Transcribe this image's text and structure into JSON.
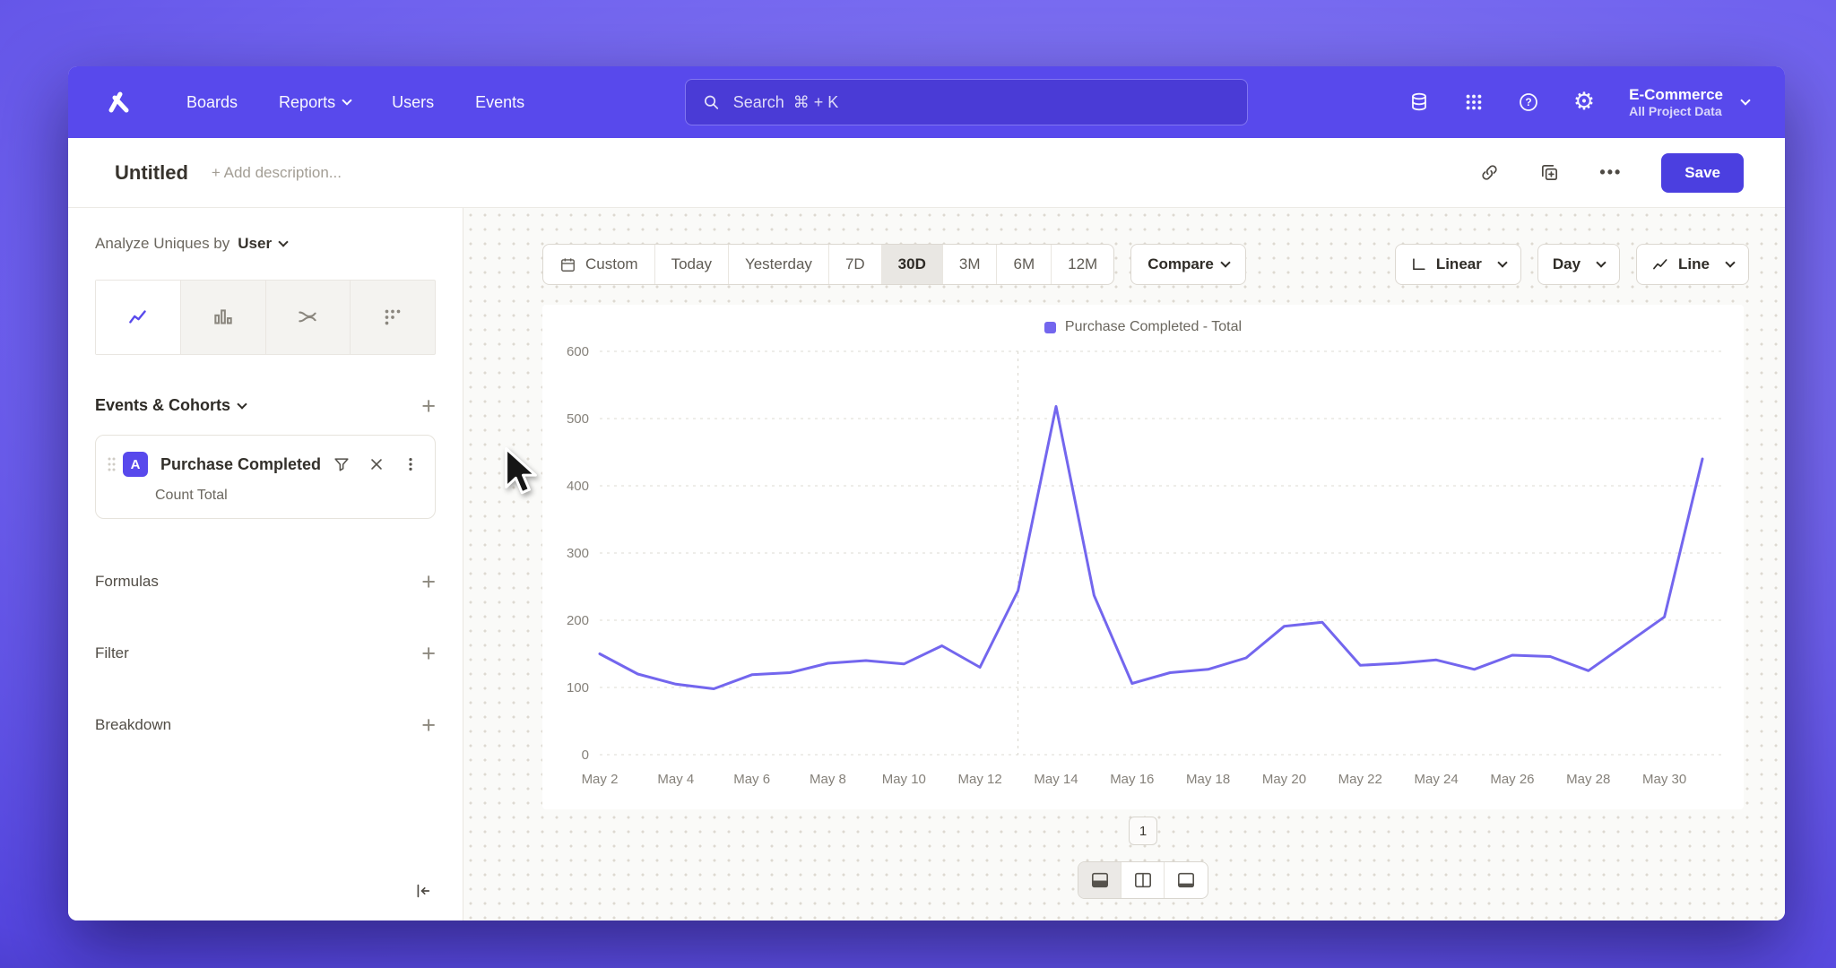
{
  "colors": {
    "brand": "#5849ec",
    "line": "#7366ee",
    "save": "#4b3fe0"
  },
  "icons": {
    "ellipsis": "•••",
    "plus": "+",
    "gear": "⚙"
  },
  "nav": {
    "items": [
      "Boards",
      "Reports",
      "Users",
      "Events"
    ],
    "search_text": "Search  ⌘ + K",
    "project": {
      "name": "E-Commerce",
      "subtitle": "All Project Data"
    }
  },
  "report_header": {
    "title": "Untitled",
    "description": "+ Add description...",
    "save": "Save"
  },
  "sidebar": {
    "analyze": {
      "prefix": "Analyze Uniques by",
      "value": "User"
    },
    "events_header": "Events & Cohorts",
    "event": {
      "badge": "A",
      "title": "Purchase Completed",
      "metric": "Count Total"
    },
    "sections": [
      {
        "label": "Formulas"
      },
      {
        "label": "Filter"
      },
      {
        "label": "Breakdown"
      }
    ]
  },
  "controls": {
    "ranges": [
      "Custom",
      "Today",
      "Yesterday",
      "7D",
      "30D",
      "3M",
      "6M",
      "12M"
    ],
    "active_range": "30D",
    "compare": "Compare",
    "scale": "Linear",
    "interval": "Day",
    "chart_type": "Line"
  },
  "chart_data": {
    "type": "line",
    "title": "",
    "x": [
      "May 2",
      "May 3",
      "May 4",
      "May 5",
      "May 6",
      "May 7",
      "May 8",
      "May 9",
      "May 10",
      "May 11",
      "May 12",
      "May 13",
      "May 14",
      "May 15",
      "May 16",
      "May 17",
      "May 18",
      "May 19",
      "May 20",
      "May 21",
      "May 22",
      "May 23",
      "May 24",
      "May 25",
      "May 26",
      "May 27",
      "May 28",
      "May 29",
      "May 30",
      "May 31"
    ],
    "x_tick_every": 2,
    "series": [
      {
        "name": "Purchase Completed - Total",
        "color": "#7366ee",
        "values": [
          150,
          120,
          105,
          98,
          119,
          122,
          136,
          140,
          135,
          162,
          130,
          244,
          518,
          237,
          106,
          122,
          127,
          144,
          191,
          197,
          133,
          136,
          141,
          127,
          148,
          146,
          125,
          165,
          205,
          440
        ]
      }
    ],
    "ylim": [
      0,
      600
    ],
    "yticks": [
      0,
      100,
      200,
      300,
      400,
      500,
      600
    ],
    "vline_index": 11,
    "grid": "horizontal-dashed",
    "legend_position": "top-center"
  },
  "footer": {
    "page": "1"
  }
}
